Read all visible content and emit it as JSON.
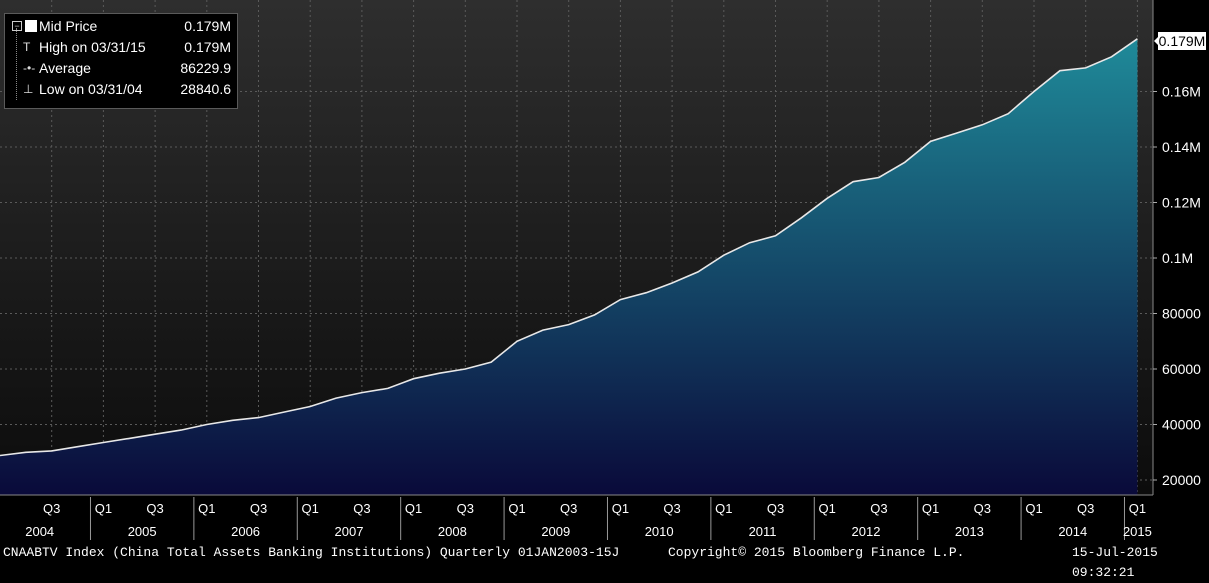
{
  "legend": {
    "items": [
      {
        "label": "Mid Price",
        "value": "0.179M"
      },
      {
        "label": "High on 03/31/15",
        "value": "0.179M"
      },
      {
        "label": "Average",
        "value": "86229.9"
      },
      {
        "label": "Low on 03/31/04",
        "value": "28840.6"
      }
    ]
  },
  "last_value_tag": "0.179M",
  "footer": {
    "description": "CNAABTV Index (China Total Assets Banking Institutions)  Quarterly 01JAN2003-15J",
    "copyright": "Copyright© 2015 Bloomberg Finance L.P.",
    "timestamp": "15-Jul-2015 09:32:21"
  },
  "colors": {
    "line": "#e8e8e8",
    "fill_top": "#1f8a99",
    "fill_bottom": "#0a0a3a",
    "grid": "#5a5a5a"
  },
  "chart_data": {
    "type": "area",
    "grid": true,
    "ylim": [
      15000,
      190000
    ],
    "y_ticks": [
      20000,
      40000,
      60000,
      80000,
      100000,
      120000,
      140000,
      160000
    ],
    "y_tick_labels": [
      "20000",
      "40000",
      "60000",
      "80000",
      "0.1M",
      "0.12M",
      "0.14M",
      "0.16M"
    ],
    "x_quarter_labels": [
      "Q3",
      "Q1",
      "Q3",
      "Q1",
      "Q3",
      "Q1",
      "Q3",
      "Q1",
      "Q3",
      "Q1",
      "Q3",
      "Q1",
      "Q3",
      "Q1",
      "Q3",
      "Q1",
      "Q3",
      "Q1",
      "Q3",
      "Q1",
      "Q3",
      "Q1"
    ],
    "x_year_labels": [
      "2004",
      "2005",
      "2006",
      "2007",
      "2008",
      "2009",
      "2010",
      "2011",
      "2012",
      "2013",
      "2014",
      "2015"
    ],
    "series": [
      {
        "x": [
          "2004-Q1",
          "2004-Q2",
          "2004-Q3",
          "2004-Q4",
          "2005-Q1",
          "2005-Q2",
          "2005-Q3",
          "2005-Q4",
          "2006-Q1",
          "2006-Q2",
          "2006-Q3",
          "2006-Q4",
          "2007-Q1",
          "2007-Q2",
          "2007-Q3",
          "2007-Q4",
          "2008-Q1",
          "2008-Q2",
          "2008-Q3",
          "2008-Q4",
          "2009-Q1",
          "2009-Q2",
          "2009-Q3",
          "2009-Q4",
          "2010-Q1",
          "2010-Q2",
          "2010-Q3",
          "2010-Q4",
          "2011-Q1",
          "2011-Q2",
          "2011-Q3",
          "2011-Q4",
          "2012-Q1",
          "2012-Q2",
          "2012-Q3",
          "2012-Q4",
          "2013-Q1",
          "2013-Q2",
          "2013-Q3",
          "2013-Q4",
          "2014-Q1",
          "2014-Q2",
          "2014-Q3",
          "2014-Q4",
          "2015-Q1"
        ],
        "values": [
          28840.6,
          30000,
          30500,
          32000,
          33500,
          35000,
          36500,
          38000,
          40000,
          41500,
          42500,
          44500,
          46500,
          49500,
          51500,
          53000,
          56500,
          58500,
          60000,
          62500,
          70000,
          74000,
          76000,
          79500,
          85000,
          87500,
          91000,
          95000,
          101000,
          105500,
          108000,
          114500,
          121500,
          127500,
          129000,
          134500,
          142000,
          145000,
          148000,
          152000,
          160000,
          167500,
          168500,
          172500,
          179000
        ]
      }
    ]
  }
}
